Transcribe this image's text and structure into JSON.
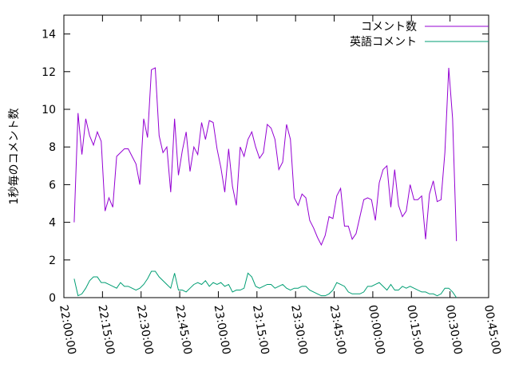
{
  "chart_data": {
    "type": "line",
    "ylabel": "1秒毎のコメント数",
    "x": [
      4,
      5.5,
      7,
      8.5,
      10,
      11.5,
      13,
      14.5,
      16,
      17.5,
      19,
      20.5,
      22,
      23.5,
      25,
      26.5,
      28,
      29.5,
      31,
      32.5,
      34,
      35.5,
      37,
      38.5,
      40,
      41.5,
      43,
      44.5,
      46,
      47.5,
      49,
      50.5,
      52,
      53.5,
      55,
      56.5,
      58,
      59.5,
      61,
      62.5,
      64,
      65.5,
      67,
      68.5,
      70,
      71.5,
      73,
      74.5,
      76,
      77.5,
      79,
      80.5,
      82,
      83.5,
      85,
      86.5,
      88,
      89.5,
      91,
      92.5,
      94,
      95.5,
      97,
      98.5,
      100,
      101.5,
      103,
      104.5,
      106,
      107.5,
      109,
      110.5,
      112,
      113.5,
      115,
      116.5,
      118,
      119.5,
      121,
      122.5,
      124,
      125.5,
      127,
      128.5,
      130,
      131.5,
      133,
      134.5,
      136,
      137.5,
      139,
      140.5,
      142,
      143.5,
      145,
      146.5,
      148,
      149.5,
      151,
      152.5
    ],
    "series": [
      {
        "name": "コメント数",
        "color": "#9400d3",
        "values": [
          4,
          9.8,
          7.6,
          9.5,
          8.6,
          8.1,
          8.8,
          8.3,
          4.6,
          5.3,
          4.8,
          7.5,
          7.7,
          7.9,
          7.9,
          7.5,
          7.1,
          6,
          9.5,
          8.5,
          12.1,
          12.2,
          8.6,
          7.7,
          8,
          5.6,
          9.5,
          6.5,
          7.8,
          8.8,
          6.7,
          8,
          7.6,
          9.3,
          8.4,
          9.4,
          9.3,
          7.9,
          6.9,
          5.6,
          7.9,
          5.9,
          4.9,
          8,
          7.5,
          8.4,
          8.8,
          8,
          7.4,
          7.7,
          9.2,
          9,
          8.4,
          6.8,
          7.2,
          9.2,
          8.4,
          5.3,
          4.9,
          5.5,
          5.3,
          4.1,
          3.7,
          3.2,
          2.8,
          3.3,
          4.3,
          4.2,
          5.4,
          5.8,
          3.8,
          3.8,
          3.1,
          3.4,
          4.3,
          5.2,
          5.3,
          5.2,
          4.1,
          6.1,
          6.8,
          7,
          4.8,
          6.8,
          4.9,
          4.3,
          4.6,
          6,
          5.2,
          5.2,
          5.4,
          3.1,
          5.5,
          6.2,
          5.1,
          5.2,
          7.7,
          12.2,
          9.5,
          3
        ]
      },
      {
        "name": "英語コメント",
        "color": "#009e73",
        "values": [
          1,
          0.1,
          0.2,
          0.5,
          0.9,
          1.1,
          1.1,
          0.8,
          0.8,
          0.7,
          0.6,
          0.5,
          0.8,
          0.6,
          0.6,
          0.5,
          0.4,
          0.5,
          0.7,
          1,
          1.4,
          1.4,
          1.1,
          0.9,
          0.7,
          0.5,
          1.3,
          0.4,
          0.4,
          0.3,
          0.5,
          0.7,
          0.8,
          0.7,
          0.9,
          0.6,
          0.8,
          0.7,
          0.8,
          0.6,
          0.7,
          0.3,
          0.4,
          0.4,
          0.5,
          1.3,
          1.1,
          0.6,
          0.5,
          0.6,
          0.7,
          0.7,
          0.5,
          0.6,
          0.7,
          0.5,
          0.4,
          0.5,
          0.5,
          0.6,
          0.6,
          0.4,
          0.3,
          0.2,
          0.1,
          0.1,
          0.2,
          0.4,
          0.8,
          0.7,
          0.6,
          0.3,
          0.2,
          0.2,
          0.2,
          0.3,
          0.6,
          0.6,
          0.7,
          0.8,
          0.6,
          0.4,
          0.7,
          0.4,
          0.4,
          0.6,
          0.5,
          0.6,
          0.5,
          0.4,
          0.3,
          0.3,
          0.2,
          0.2,
          0.1,
          0.2,
          0.5,
          0.5,
          0.3,
          0
        ]
      }
    ],
    "xlim": [
      0,
      165
    ],
    "xticks": [
      {
        "value": 0,
        "label": "22:00:00"
      },
      {
        "value": 15,
        "label": "22:15:00"
      },
      {
        "value": 30,
        "label": "22:30:00"
      },
      {
        "value": 45,
        "label": "22:45:00"
      },
      {
        "value": 60,
        "label": "23:00:00"
      },
      {
        "value": 75,
        "label": "23:15:00"
      },
      {
        "value": 90,
        "label": "23:30:00"
      },
      {
        "value": 105,
        "label": "23:45:00"
      },
      {
        "value": 120,
        "label": "00:00:00"
      },
      {
        "value": 135,
        "label": "00:15:00"
      },
      {
        "value": 150,
        "label": "00:30:00"
      },
      {
        "value": 165,
        "label": "00:45:00"
      }
    ],
    "ylim": [
      0,
      15
    ],
    "yticks": [
      0,
      2,
      4,
      6,
      8,
      10,
      12,
      14
    ],
    "legend": "top-right"
  }
}
